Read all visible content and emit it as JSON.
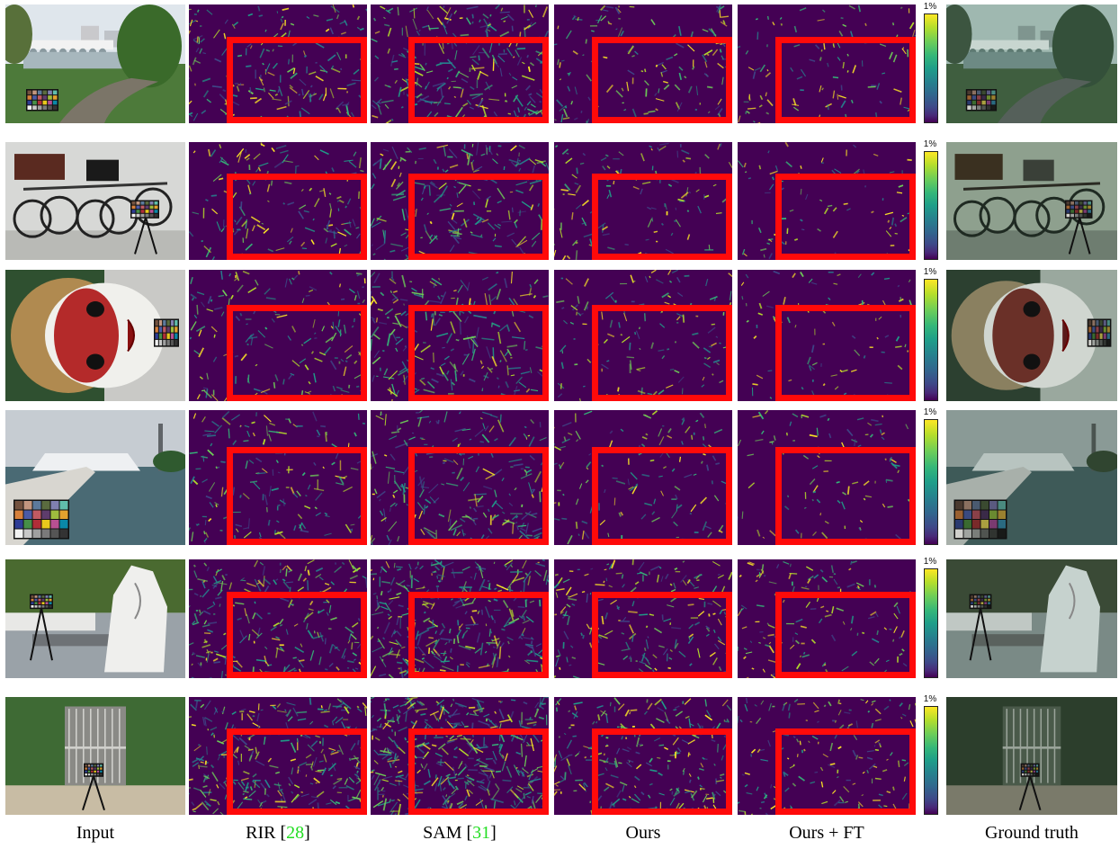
{
  "figure": {
    "columns": [
      {
        "label": "Input",
        "citation": ""
      },
      {
        "label": "RIR [",
        "citation": "28",
        "suffix": "]"
      },
      {
        "label": "SAM [",
        "citation": "31",
        "suffix": "]"
      },
      {
        "label": "Ours",
        "citation": ""
      },
      {
        "label": "Ours + FT",
        "citation": ""
      },
      {
        "label": "Ground truth",
        "citation": ""
      }
    ],
    "colorbar": {
      "max_label": "1%"
    },
    "rows": [
      {
        "scene": "bridge-park"
      },
      {
        "scene": "bicycles"
      },
      {
        "scene": "mask-sculpture"
      },
      {
        "scene": "cruise-ship"
      },
      {
        "scene": "white-sculpture"
      },
      {
        "scene": "garden-gate"
      }
    ]
  },
  "colors": {
    "highlight_box": "#ff0a0a",
    "citation": "#22dd22",
    "error_background": "#440154"
  }
}
